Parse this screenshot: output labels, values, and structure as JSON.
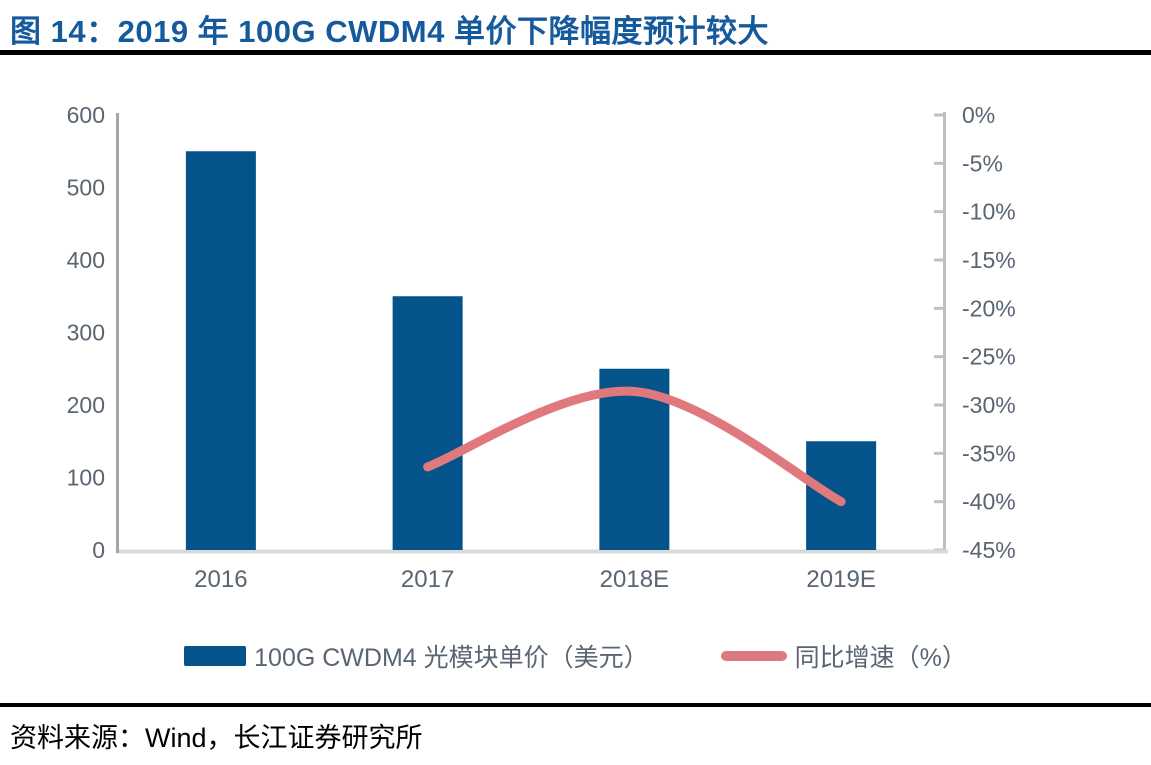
{
  "header": {
    "title": "图 14：2019 年 100G CWDM4 单价下降幅度预计较大"
  },
  "footer": {
    "source": "资料来源：Wind，长江证券研究所"
  },
  "colors": {
    "title_blue": "#155A9C",
    "bar_blue": "#04538A",
    "line_salmon": "#E0797E",
    "axis_text": "#5A6572",
    "left_axis_line": "#A6A6A6",
    "bottom_axis_line": "#D9D9D9",
    "right_axis_line": "#C0C0C0",
    "rule_black": "#000000"
  },
  "chart_data": {
    "type": "bar",
    "subtype": "combo-bar-line",
    "title": "2019 年 100G CWDM4 单价下降幅度预计较大",
    "categories": [
      "2016",
      "2017",
      "2018E",
      "2019E"
    ],
    "series": [
      {
        "name": "100G CWDM4 光模块单价（美元）",
        "type": "bar",
        "axis": "left",
        "values": [
          550,
          350,
          250,
          150
        ],
        "color": "#04538A"
      },
      {
        "name": "同比增速（%）",
        "type": "line",
        "axis": "right",
        "smooth": true,
        "values": [
          null,
          -36.4,
          -28.6,
          -40.0
        ],
        "color": "#E0797E"
      }
    ],
    "left_axis": {
      "min": 0,
      "max": 600,
      "tick_values": [
        600,
        500,
        400,
        300,
        200,
        100,
        0
      ],
      "tick_labels": [
        "600",
        "500",
        "400",
        "300",
        "200",
        "100",
        "0"
      ]
    },
    "right_axis": {
      "min": -45,
      "max": 0,
      "tick_values": [
        0,
        -5,
        -10,
        -15,
        -20,
        -25,
        -30,
        -35,
        -40,
        -45
      ],
      "tick_labels": [
        "0%",
        "-5%",
        "-10%",
        "-15%",
        "-20%",
        "-25%",
        "-30%",
        "-35%",
        "-40%",
        "-45%"
      ]
    },
    "grid": false,
    "legend_position": "bottom"
  }
}
